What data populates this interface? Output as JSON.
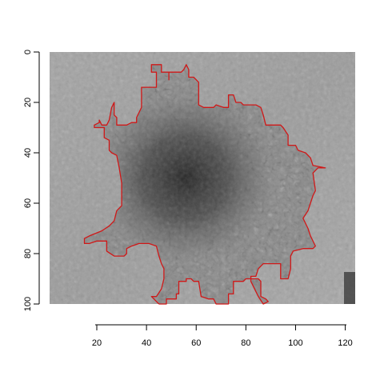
{
  "chart_data": {
    "type": "image-with-contour",
    "title": "",
    "xlabel": "",
    "ylabel": "",
    "xlim": [
      1,
      124
    ],
    "ylim": [
      100,
      0
    ],
    "x_ticks": [
      20,
      40,
      60,
      80,
      100,
      120
    ],
    "y_ticks": [
      0,
      20,
      40,
      60,
      80,
      100
    ],
    "x_tick_labels": [
      "20",
      "40",
      "60",
      "80",
      "100",
      "120"
    ],
    "y_tick_labels": [
      "0",
      "20",
      "40",
      "60",
      "80",
      "100"
    ],
    "background": {
      "description_color": "#9a9a9a",
      "center": [
        56,
        50
      ],
      "dark_core_color": "#2a2a2a"
    },
    "contour": {
      "color": "#d01818",
      "points": [
        [
          45,
          100
        ],
        [
          48,
          100
        ],
        [
          48,
          98
        ],
        [
          52,
          98
        ],
        [
          52,
          96
        ],
        [
          53,
          96
        ],
        [
          53,
          91
        ],
        [
          56,
          91
        ],
        [
          56,
          90
        ],
        [
          58,
          90
        ],
        [
          59,
          91
        ],
        [
          61,
          91
        ],
        [
          62,
          97
        ],
        [
          65,
          98
        ],
        [
          67,
          98
        ],
        [
          68,
          100
        ],
        [
          73,
          100
        ],
        [
          73,
          96
        ],
        [
          75,
          96
        ],
        [
          75,
          91
        ],
        [
          79,
          91
        ],
        [
          80,
          90
        ],
        [
          85,
          90
        ],
        [
          86,
          91
        ],
        [
          86,
          97
        ],
        [
          88,
          98
        ],
        [
          89,
          99
        ],
        [
          87,
          100
        ],
        [
          85,
          97
        ],
        [
          84,
          95
        ],
        [
          82,
          91
        ],
        [
          82,
          89
        ],
        [
          84,
          89
        ],
        [
          85,
          86
        ],
        [
          87,
          84
        ],
        [
          94,
          84
        ],
        [
          94,
          90
        ],
        [
          97,
          90
        ],
        [
          98,
          86
        ],
        [
          98,
          81
        ],
        [
          99,
          79
        ],
        [
          103,
          78
        ],
        [
          107,
          78
        ],
        [
          108,
          77
        ],
        [
          106,
          73
        ],
        [
          105,
          70
        ],
        [
          103,
          66
        ],
        [
          105,
          63
        ],
        [
          107,
          57
        ],
        [
          108,
          55
        ],
        [
          107,
          48
        ],
        [
          109,
          46
        ],
        [
          112,
          46
        ],
        [
          107,
          45
        ],
        [
          106,
          42
        ],
        [
          104,
          40
        ],
        [
          101,
          39
        ],
        [
          100,
          37
        ],
        [
          97,
          37
        ],
        [
          97,
          33
        ],
        [
          95,
          30
        ],
        [
          94,
          29
        ],
        [
          88,
          29
        ],
        [
          87,
          25
        ],
        [
          86,
          22
        ],
        [
          84,
          21
        ],
        [
          79,
          21
        ],
        [
          78,
          20
        ],
        [
          76,
          20
        ],
        [
          75,
          17
        ],
        [
          73,
          17
        ],
        [
          73,
          22
        ],
        [
          71,
          22
        ],
        [
          68,
          21
        ],
        [
          67,
          22
        ],
        [
          63,
          22
        ],
        [
          61,
          21
        ],
        [
          61,
          12
        ],
        [
          59,
          10
        ],
        [
          57,
          10
        ],
        [
          57,
          7
        ],
        [
          56,
          5
        ],
        [
          55,
          7
        ],
        [
          54,
          8
        ],
        [
          49,
          8
        ],
        [
          49,
          11
        ],
        [
          49,
          8
        ],
        [
          46,
          8
        ],
        [
          46,
          5
        ],
        [
          44,
          5
        ],
        [
          42,
          5
        ],
        [
          42,
          8
        ],
        [
          44,
          8
        ],
        [
          44,
          12
        ],
        [
          44,
          14
        ],
        [
          43,
          14
        ],
        [
          42,
          14
        ],
        [
          38,
          14
        ],
        [
          38,
          22
        ],
        [
          37,
          24
        ],
        [
          36,
          26
        ],
        [
          36,
          28
        ],
        [
          34,
          28
        ],
        [
          32,
          29
        ],
        [
          30,
          29
        ],
        [
          28,
          29
        ],
        [
          28,
          26
        ],
        [
          27,
          25
        ],
        [
          27,
          24
        ],
        [
          27,
          20
        ],
        [
          26,
          22
        ],
        [
          25,
          27
        ],
        [
          24,
          29
        ],
        [
          22,
          29
        ],
        [
          21,
          27
        ],
        [
          21,
          28
        ],
        [
          19,
          29
        ],
        [
          19,
          30
        ],
        [
          23,
          30
        ],
        [
          23,
          34
        ],
        [
          25,
          35
        ],
        [
          25,
          39
        ],
        [
          26,
          40
        ],
        [
          28,
          41
        ],
        [
          29,
          46
        ],
        [
          30,
          52
        ],
        [
          30,
          57
        ],
        [
          30,
          61
        ],
        [
          28,
          63
        ],
        [
          27,
          67
        ],
        [
          25,
          69
        ],
        [
          22,
          71
        ],
        [
          17,
          73
        ],
        [
          15,
          74
        ],
        [
          15,
          76
        ],
        [
          17,
          76
        ],
        [
          20,
          75
        ],
        [
          24,
          75
        ],
        [
          24,
          79
        ],
        [
          27,
          81
        ],
        [
          31,
          81
        ],
        [
          32,
          80
        ],
        [
          32,
          78
        ],
        [
          34,
          77
        ],
        [
          37,
          76
        ],
        [
          41,
          76
        ],
        [
          44,
          77
        ],
        [
          45,
          81
        ],
        [
          46,
          84
        ],
        [
          47,
          86
        ],
        [
          47,
          90
        ],
        [
          46,
          94
        ],
        [
          44,
          97
        ],
        [
          42,
          97
        ],
        [
          45,
          100
        ]
      ]
    }
  }
}
